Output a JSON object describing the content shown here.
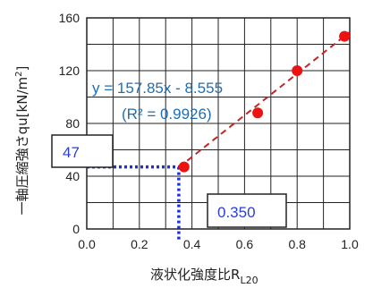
{
  "chart_data": {
    "type": "scatter",
    "xlabel_main": "液状化強度比R",
    "xlabel_sub": "L20",
    "ylabel_main": "一軸圧縮強さqu[kN/m",
    "ylabel_sup": "2",
    "ylabel_tail": "]",
    "xlim": [
      0,
      1.0
    ],
    "ylim": [
      0,
      160
    ],
    "xticks": [
      0.0,
      0.2,
      0.4,
      0.6,
      0.8,
      1.0
    ],
    "xtick_labels": [
      "0.0",
      "0.2",
      "0.4",
      "0.6",
      "0.8",
      "1.0"
    ],
    "yticks": [
      0,
      40,
      80,
      120,
      160
    ],
    "ytick_labels": [
      "0",
      "40",
      "80",
      "120",
      "160"
    ],
    "grid": true,
    "points": [
      {
        "x": 0.37,
        "y": 47
      },
      {
        "x": 0.65,
        "y": 88
      },
      {
        "x": 0.8,
        "y": 120
      },
      {
        "x": 0.98,
        "y": 146
      }
    ],
    "point_color": "#ee1111",
    "trendline": {
      "slope": 157.85,
      "intercept": -8.555,
      "x_from": 0.35,
      "x_to": 1.0,
      "color": "#cc2222",
      "style": "dashed"
    },
    "equation_line1": "y = 157.85x - 8.555",
    "equation_line2": "(R² = 0.9926)",
    "equation_color": "#1f6fb2",
    "marker_lines": {
      "x": 0.35,
      "y": 47,
      "color": "#1a2fe0",
      "style": "dotted"
    },
    "annotation_y_value": "47",
    "annotation_x_value": "0.350"
  }
}
